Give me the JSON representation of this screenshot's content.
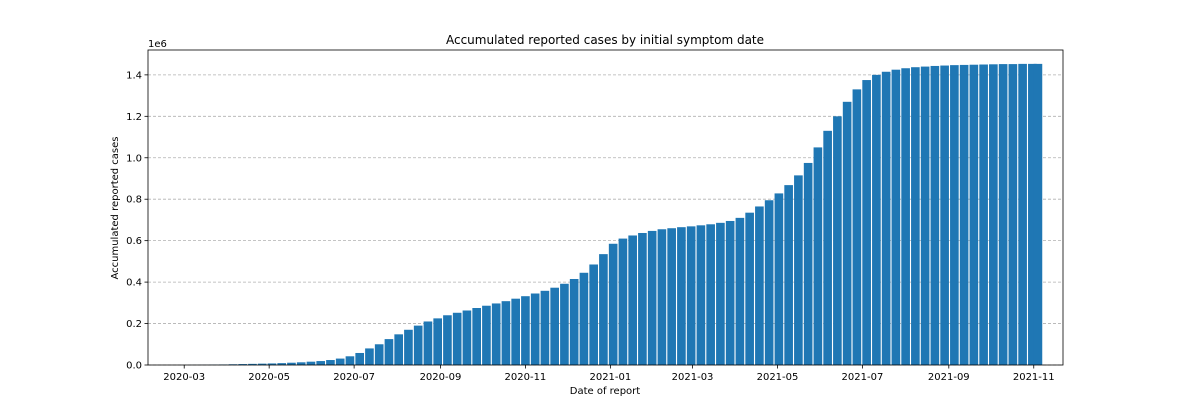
{
  "chart_data": {
    "type": "bar",
    "title": "Accumulated reported cases by initial symptom date",
    "xlabel": "Date of report",
    "ylabel": "Accumulated reported cases",
    "y_offset_label": "1e6",
    "y_ticks": [
      "0.0",
      "0.2",
      "0.4",
      "0.6",
      "0.8",
      "1.0",
      "1.2",
      "1.4"
    ],
    "x_ticks": [
      "2020-03",
      "2020-05",
      "2020-07",
      "2020-09",
      "2020-11",
      "2021-01",
      "2021-03",
      "2021-05",
      "2021-07",
      "2021-09",
      "2021-11"
    ],
    "ylim": [
      0,
      1.52
    ],
    "xlim": [
      "2020-02-04",
      "2021-11-22"
    ],
    "grid": "y-dashed",
    "bar_color": "#1f77b4",
    "series": [
      {
        "x": [
          "2020-03-01",
          "2020-03-08",
          "2020-03-15",
          "2020-03-22",
          "2020-03-29",
          "2020-04-05",
          "2020-04-12",
          "2020-04-19",
          "2020-04-26",
          "2020-05-03",
          "2020-05-10",
          "2020-05-17",
          "2020-05-24",
          "2020-05-31",
          "2020-06-07",
          "2020-06-14",
          "2020-06-21",
          "2020-06-28",
          "2020-07-05",
          "2020-07-12",
          "2020-07-19",
          "2020-07-26",
          "2020-08-02",
          "2020-08-09",
          "2020-08-16",
          "2020-08-23",
          "2020-08-30",
          "2020-09-06",
          "2020-09-13",
          "2020-09-20",
          "2020-09-27",
          "2020-10-04",
          "2020-10-11",
          "2020-10-18",
          "2020-10-25",
          "2020-11-01",
          "2020-11-08",
          "2020-11-15",
          "2020-11-22",
          "2020-11-29",
          "2020-12-06",
          "2020-12-13",
          "2020-12-20",
          "2020-12-27",
          "2021-01-03",
          "2021-01-10",
          "2021-01-17",
          "2021-01-24",
          "2021-01-31",
          "2021-02-07",
          "2021-02-14",
          "2021-02-21",
          "2021-02-28",
          "2021-03-07",
          "2021-03-14",
          "2021-03-21",
          "2021-03-28",
          "2021-04-04",
          "2021-04-11",
          "2021-04-18",
          "2021-04-25",
          "2021-05-02",
          "2021-05-09",
          "2021-05-16",
          "2021-05-23",
          "2021-05-30",
          "2021-06-06",
          "2021-06-13",
          "2021-06-20",
          "2021-06-27",
          "2021-07-04",
          "2021-07-11",
          "2021-07-18",
          "2021-07-25",
          "2021-08-01",
          "2021-08-08",
          "2021-08-15",
          "2021-08-22",
          "2021-08-29",
          "2021-09-05",
          "2021-09-12",
          "2021-09-19",
          "2021-09-26",
          "2021-10-03",
          "2021-10-10",
          "2021-10-17",
          "2021-10-24",
          "2021-10-31",
          "2021-11-04"
        ],
        "values": [
          0.0001,
          0.0003,
          0.0008,
          0.0015,
          0.0025,
          0.0035,
          0.0045,
          0.0055,
          0.0065,
          0.0075,
          0.009,
          0.011,
          0.013,
          0.016,
          0.019,
          0.024,
          0.031,
          0.042,
          0.058,
          0.08,
          0.1,
          0.125,
          0.148,
          0.17,
          0.19,
          0.21,
          0.225,
          0.24,
          0.252,
          0.263,
          0.275,
          0.286,
          0.297,
          0.308,
          0.32,
          0.332,
          0.345,
          0.358,
          0.373,
          0.392,
          0.415,
          0.445,
          0.485,
          0.535,
          0.585,
          0.61,
          0.625,
          0.637,
          0.647,
          0.655,
          0.66,
          0.665,
          0.669,
          0.674,
          0.679,
          0.686,
          0.695,
          0.71,
          0.735,
          0.765,
          0.795,
          0.828,
          0.868,
          0.915,
          0.975,
          1.05,
          1.13,
          1.2,
          1.27,
          1.33,
          1.375,
          1.4,
          1.415,
          1.425,
          1.432,
          1.437,
          1.44,
          1.443,
          1.445,
          1.447,
          1.448,
          1.449,
          1.45,
          1.451,
          1.452,
          1.452,
          1.453,
          1.453,
          1.453
        ]
      }
    ]
  }
}
